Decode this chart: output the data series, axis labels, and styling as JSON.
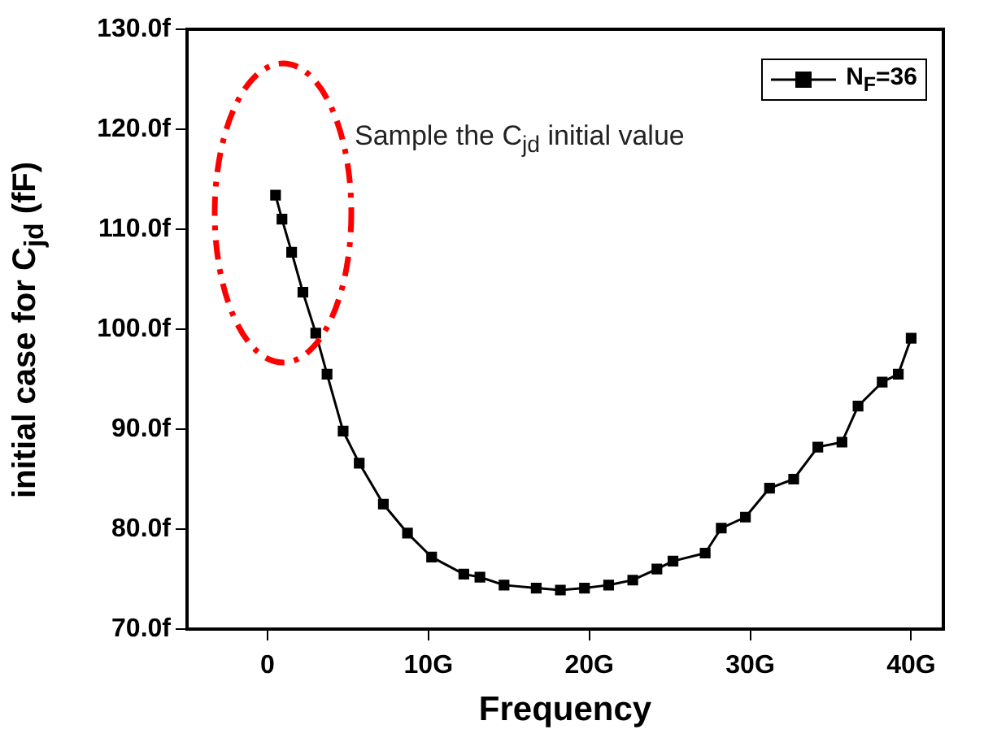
{
  "chart_data": {
    "type": "line",
    "xlabel": "Frequency",
    "ylabel": "initial case for C$_{jd}$ (fF)",
    "annotations": [
      "Sample the C$_{jd}$ initial value"
    ],
    "x": [
      0.5,
      0.9,
      1.5,
      2.2,
      3.0,
      3.7,
      4.7,
      5.7,
      7.2,
      8.7,
      10.2,
      12.2,
      13.2,
      14.7,
      16.7,
      18.2,
      19.7,
      21.2,
      22.7,
      24.2,
      25.2,
      27.2,
      28.2,
      29.7,
      31.2,
      32.7,
      34.2,
      35.7,
      36.7,
      38.2,
      39.2,
      40.0
    ],
    "series": [
      {
        "name": "N$_{F}$=36",
        "color": "#000000",
        "values": [
          113.4,
          111,
          107.7,
          103.7,
          99.6,
          95.5,
          89.8,
          86.6,
          82.5,
          79.6,
          77.2,
          75.5,
          75.2,
          74.4,
          74.1,
          73.9,
          74.1,
          74.4,
          74.9,
          76.0,
          76.8,
          77.6,
          80.1,
          81.2,
          84.1,
          85.0,
          88.2,
          88.7,
          92.3,
          94.7,
          95.5,
          99.1
        ]
      }
    ],
    "xlim": [
      -5,
      42
    ],
    "xticks": [
      {
        "value": 0,
        "label": "0"
      },
      {
        "value": 10,
        "label": "10G"
      },
      {
        "value": 20,
        "label": "20G"
      },
      {
        "value": 30,
        "label": "30G"
      },
      {
        "value": 40,
        "label": "40G"
      }
    ],
    "ylim": [
      70,
      130
    ],
    "yticks": [
      {
        "value": 70,
        "label": "70.0f"
      },
      {
        "value": 80,
        "label": "80.0f"
      },
      {
        "value": 90,
        "label": "90.0f"
      },
      {
        "value": 100,
        "label": "100.0f"
      },
      {
        "value": 110,
        "label": "110.0f"
      },
      {
        "value": 120,
        "label": "120.0f"
      },
      {
        "value": 130,
        "label": "130.0f"
      }
    ],
    "grid": false,
    "legend": "top right",
    "marker": "square",
    "line_style": "solid"
  }
}
